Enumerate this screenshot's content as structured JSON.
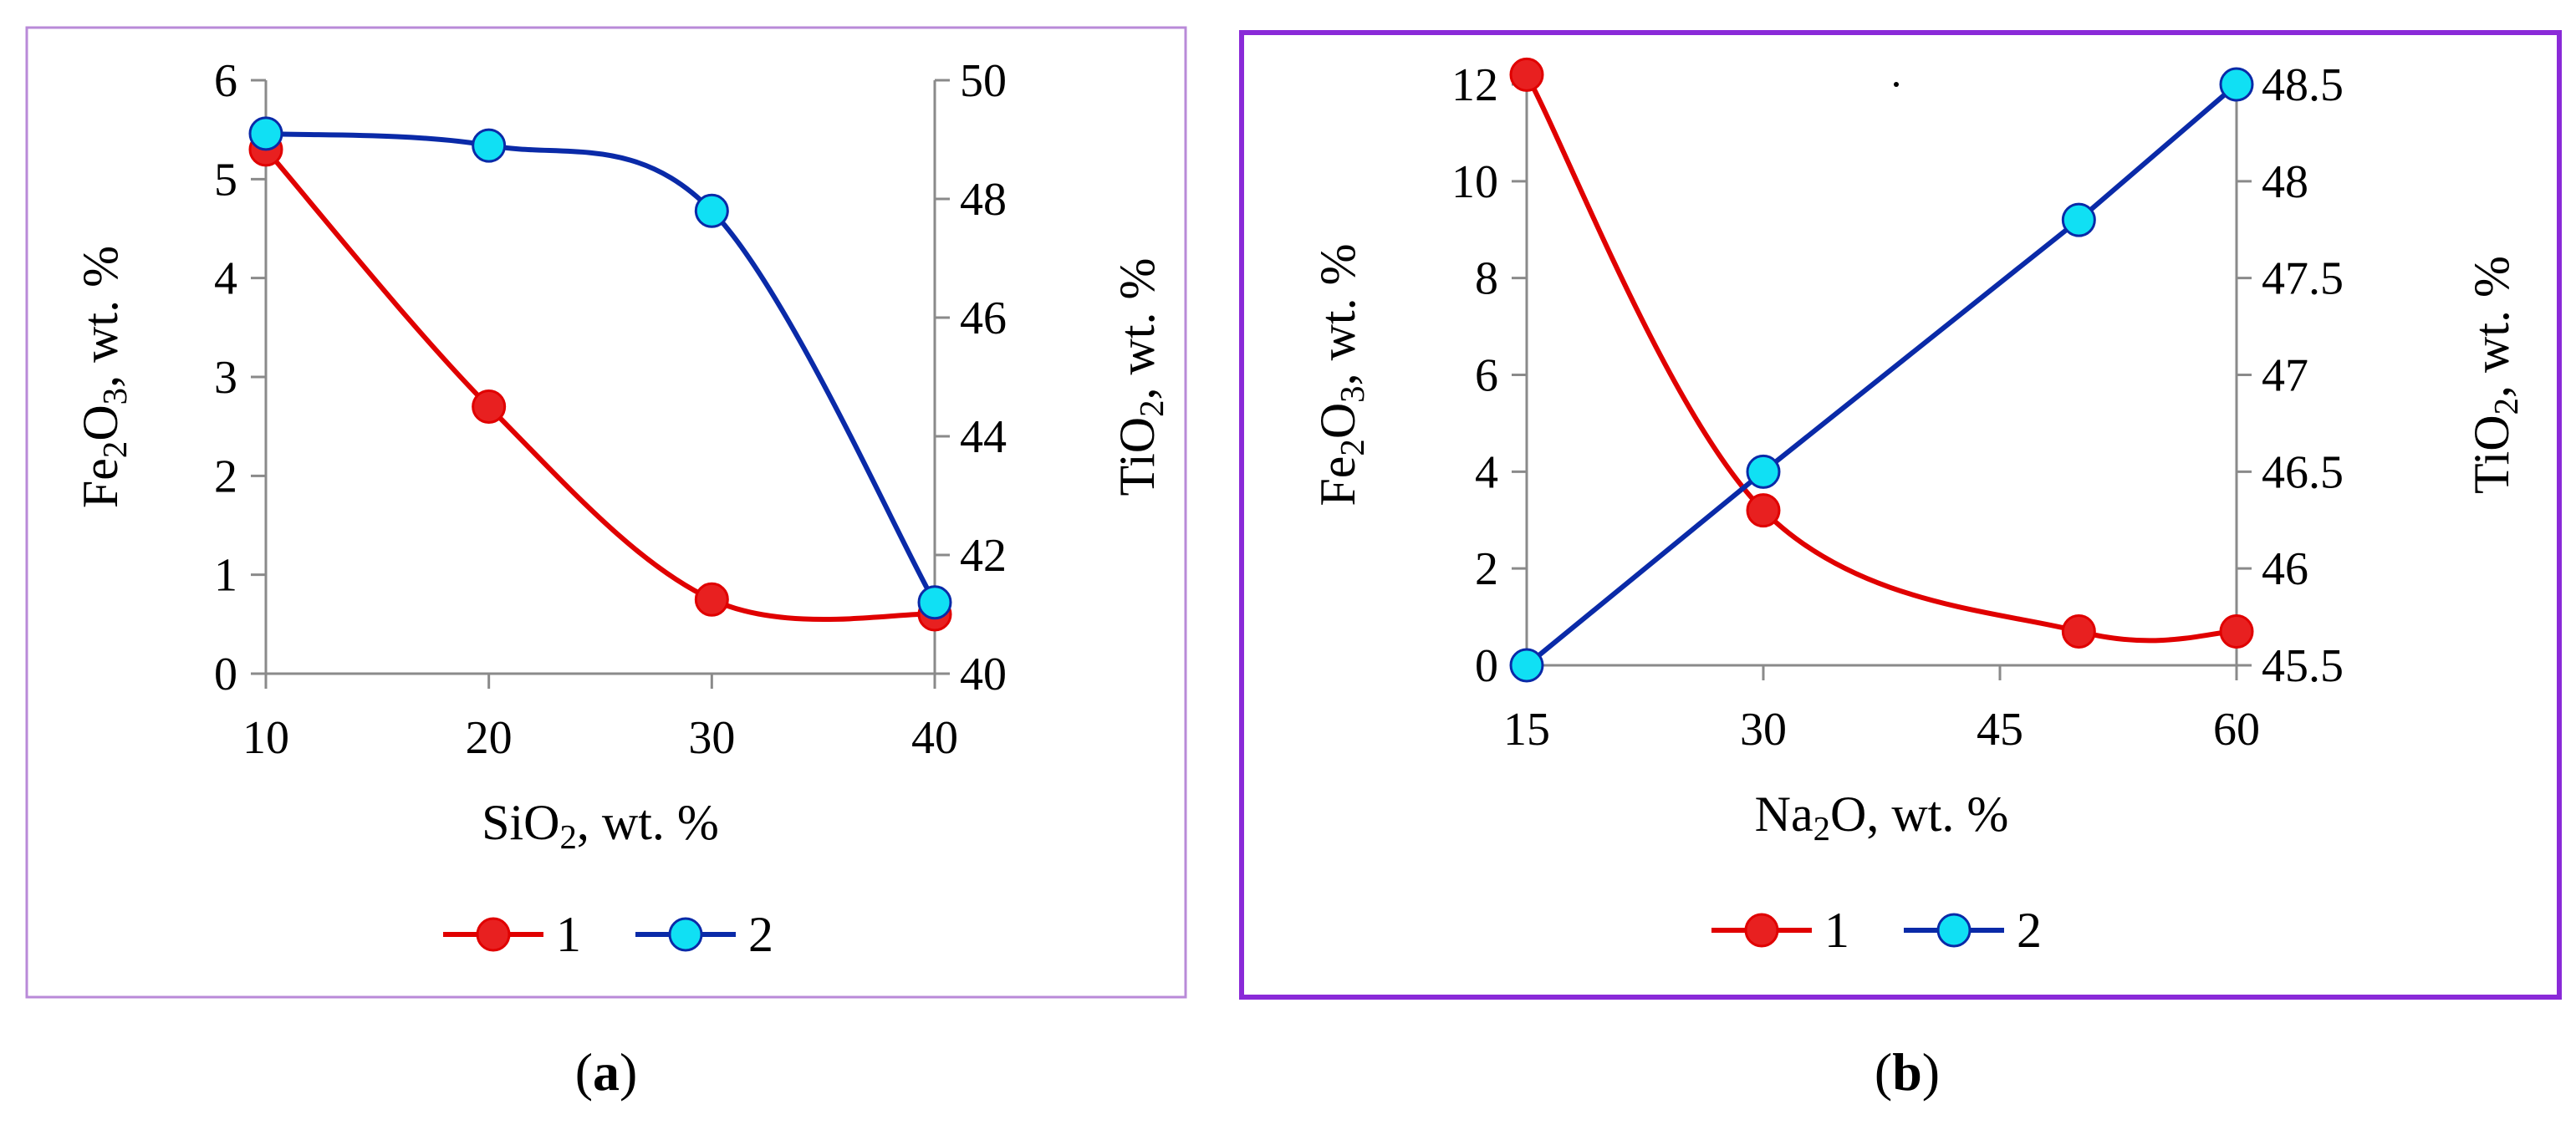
{
  "colors": {
    "series1_line": "#e00000",
    "series1_marker": "#e82020",
    "series2_line": "#0a2aa8",
    "series2_marker": "#10e0f4",
    "frame_a": "#b98ad8",
    "frame_b": "#8a2ad8",
    "axis": "#8a8a8a"
  },
  "chart_data": [
    {
      "type": "line",
      "caption": "(a)",
      "x": [
        10,
        20,
        30,
        40
      ],
      "xlabel": "SiO2, wt. %",
      "ylabel": "Fe2O3, wt. %",
      "y2label": "TiO2, wt. %",
      "xticks": [
        "10",
        "20",
        "30",
        "40"
      ],
      "yticks": [
        "0",
        "1",
        "2",
        "3",
        "4",
        "5",
        "6"
      ],
      "y2ticks": [
        "40",
        "42",
        "44",
        "46",
        "48",
        "50"
      ],
      "xlim": [
        10,
        40
      ],
      "ylim": [
        0,
        6
      ],
      "y2lim": [
        40,
        50
      ],
      "grid": false,
      "legend_position": "bottom",
      "series": [
        {
          "name": "1",
          "axis": "left",
          "values": [
            5.3,
            2.7,
            0.75,
            0.6
          ]
        },
        {
          "name": "2",
          "axis": "right",
          "values": [
            49.1,
            48.9,
            47.8,
            41.2
          ]
        }
      ]
    },
    {
      "type": "line",
      "caption": "(b)",
      "x": [
        15,
        30,
        50,
        60
      ],
      "xlabel": "Na2O, wt. %",
      "ylabel": "Fe2O3, wt. %",
      "y2label": "TiO2, wt. %",
      "xticks": [
        "15",
        "30",
        "45",
        "60"
      ],
      "yticks": [
        "0",
        "2",
        "4",
        "6",
        "8",
        "10",
        "12"
      ],
      "y2ticks": [
        "45.5",
        "46",
        "46.5",
        "47",
        "47.5",
        "48",
        "48.5"
      ],
      "xlim": [
        15,
        60
      ],
      "ylim": [
        0,
        12
      ],
      "y2lim": [
        45.5,
        48.5
      ],
      "grid": false,
      "legend_position": "bottom",
      "series": [
        {
          "name": "1",
          "axis": "left",
          "values": [
            12.2,
            3.2,
            0.7,
            0.7
          ]
        },
        {
          "name": "2",
          "axis": "right",
          "values": [
            45.5,
            46.5,
            47.8,
            48.5
          ]
        }
      ]
    }
  ]
}
